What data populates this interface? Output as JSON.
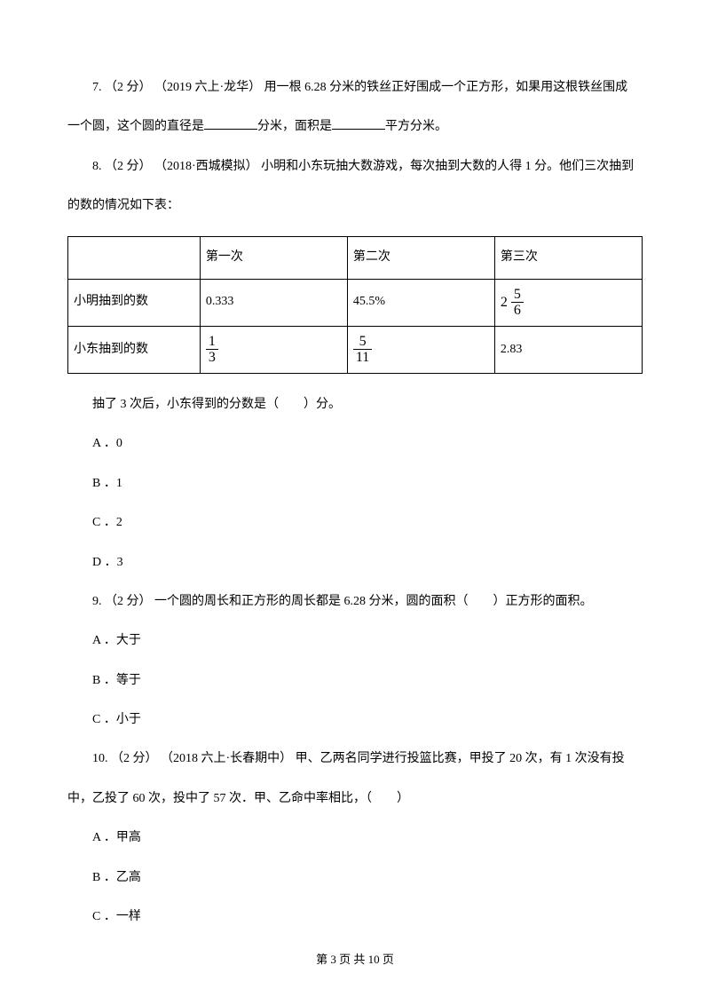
{
  "q7": {
    "text_part1": "7. （2 分） （2019 六上·龙华） 用一根 6.28 分米的铁丝正好围成一个正方形，如果用这根铁丝围成",
    "text_part2": "一个圆，这个圆的直径是",
    "text_part3": "分米，面积是",
    "text_part4": "平方分米。"
  },
  "q8": {
    "intro_part1": "8. （2 分） （2018·西城模拟） 小明和小东玩抽大数游戏，每次抽到大数的人得 1 分。他们三次抽到",
    "intro_part2": "的数的情况如下表：",
    "table": {
      "headers": [
        "",
        "第一次",
        "第二次",
        "第三次"
      ],
      "row1_label": "小明抽到的数",
      "row1_c1": "0.333",
      "row1_c2": "45.5%",
      "row1_c3_whole": "2",
      "row1_c3_num": "5",
      "row1_c3_den": "6",
      "row2_label": "小东抽到的数",
      "row2_c1_num": "1",
      "row2_c1_den": "3",
      "row2_c2_num": "5",
      "row2_c2_den": "11",
      "row2_c3": "2.83"
    },
    "after_table": "抽了 3 次后，小东得到的分数是（　　）分。",
    "opt_a": "A ．0",
    "opt_b": "B ．1",
    "opt_c": "C ．2",
    "opt_d": "D ．3"
  },
  "q9": {
    "text": "9. （2 分）  一个圆的周长和正方形的周长都是 6.28 分米，圆的面积（　　）正方形的面积。",
    "opt_a": "A ．大于",
    "opt_b": "B ．等于",
    "opt_c": "C ．小于"
  },
  "q10": {
    "text_part1": "10. （2 分） （2018 六上·长春期中）  甲、乙两名同学进行投篮比赛，甲投了 20 次，有 1 次没有投",
    "text_part2": "中，乙投了 60 次，投中了 57 次．甲、乙命中率相比，（　　）",
    "opt_a": "A ．甲高",
    "opt_b": "B ．乙高",
    "opt_c": "C ．一样"
  },
  "footer": "第 3 页 共 10 页"
}
